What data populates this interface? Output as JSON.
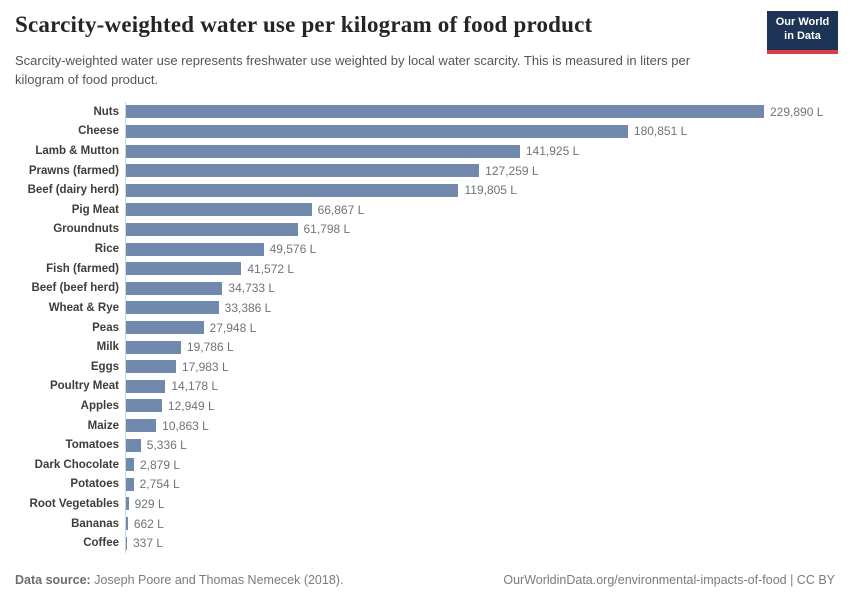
{
  "header": {
    "title": "Scarcity-weighted water use per kilogram of food product",
    "subtitle": "Scarcity-weighted water use represents freshwater use weighted by local water scarcity. This is measured in liters per kilogram of food product.",
    "logo": {
      "line1": "Our World",
      "line2": "in Data"
    }
  },
  "chart_data": {
    "type": "bar",
    "orientation": "horizontal",
    "title": "Scarcity-weighted water use per kilogram of food product",
    "unit": "liters per kilogram",
    "xlim": [
      0,
      229890
    ],
    "grid": false,
    "legend": "none",
    "categories": [
      "Nuts",
      "Cheese",
      "Lamb & Mutton",
      "Prawns (farmed)",
      "Beef (dairy herd)",
      "Pig Meat",
      "Groundnuts",
      "Rice",
      "Fish (farmed)",
      "Beef (beef herd)",
      "Wheat & Rye",
      "Peas",
      "Milk",
      "Eggs",
      "Poultry Meat",
      "Apples",
      "Maize",
      "Tomatoes",
      "Dark Chocolate",
      "Potatoes",
      "Root Vegetables",
      "Bananas",
      "Coffee"
    ],
    "values": [
      229890,
      180851,
      141925,
      127259,
      119805,
      66867,
      61798,
      49576,
      41572,
      34733,
      33386,
      27948,
      19786,
      17983,
      14178,
      12949,
      10863,
      5336,
      2879,
      2754,
      929,
      662,
      337
    ],
    "value_labels": [
      "229,890 L",
      "180,851 L",
      "141,925 L",
      "127,259 L",
      "119,805 L",
      "66,867 L",
      "61,798 L",
      "49,576 L",
      "41,572 L",
      "34,733 L",
      "33,386 L",
      "27,948 L",
      "19,786 L",
      "17,983 L",
      "14,178 L",
      "12,949 L",
      "10,863 L",
      "5,336 L",
      "2,879 L",
      "2,754 L",
      "929 L",
      "662 L",
      "337 L"
    ]
  },
  "footer": {
    "source_label": "Data source:",
    "source_text": " Joseph Poore and Thomas Nemecek (2018).",
    "right_text": "OurWorldinData.org/environmental-impacts-of-food | CC BY"
  },
  "colors": {
    "bar": "#7189ac",
    "axis_line": "#ccd6e2",
    "logo_bg": "#1d3456",
    "logo_red": "#dc3c45"
  }
}
